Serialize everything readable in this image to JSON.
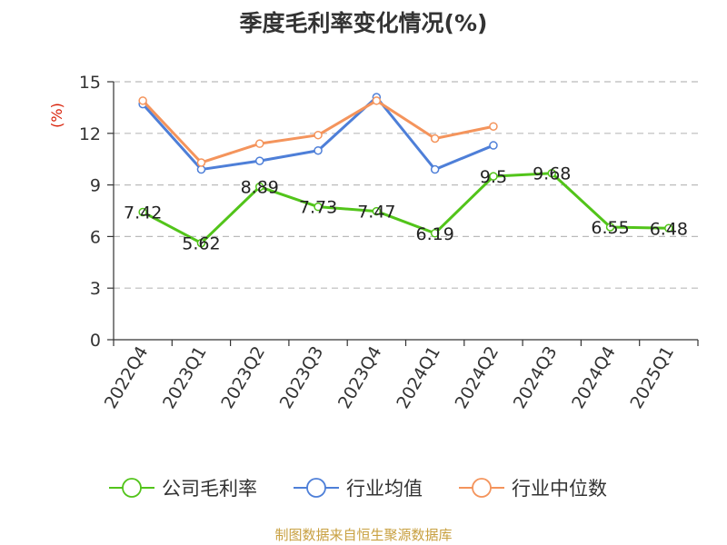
{
  "chart_data": {
    "type": "line",
    "title": "季度毛利率变化情况(%)",
    "ylabel": "(%)",
    "categories": [
      "2022Q4",
      "2023Q1",
      "2023Q2",
      "2023Q3",
      "2023Q4",
      "2024Q1",
      "2024Q2",
      "2024Q3",
      "2024Q4",
      "2025Q1"
    ],
    "ylim": [
      0,
      15
    ],
    "yticks": [
      0,
      3,
      6,
      9,
      12,
      15
    ],
    "grid": "horizontal dashed",
    "legend_position": "bottom",
    "series": [
      {
        "name": "公司毛利率",
        "color": "#52c41a",
        "labeled": true,
        "values": [
          7.42,
          5.62,
          8.89,
          7.73,
          7.47,
          6.19,
          9.5,
          9.68,
          6.55,
          6.48
        ],
        "labels": [
          "7.42",
          "5.62",
          "8.89",
          "7.73",
          "7.47",
          "6.19",
          "9.5",
          "9.68",
          "6.55",
          "6.48"
        ]
      },
      {
        "name": "行业均值",
        "color": "#4e7fd8",
        "labeled": false,
        "values": [
          13.7,
          9.9,
          10.4,
          11.0,
          14.1,
          9.9,
          11.3,
          null,
          null,
          null
        ]
      },
      {
        "name": "行业中位数",
        "color": "#f4945c",
        "labeled": false,
        "values": [
          13.9,
          10.3,
          11.4,
          11.9,
          13.9,
          11.7,
          12.4,
          null,
          null,
          null
        ]
      }
    ]
  },
  "footer": {
    "source": "制图数据来自恒生聚源数据库"
  },
  "colors": {
    "axis": "#333333",
    "grid": "#bbbbbb",
    "unit": "#d81e06",
    "source": "#c8a040"
  }
}
